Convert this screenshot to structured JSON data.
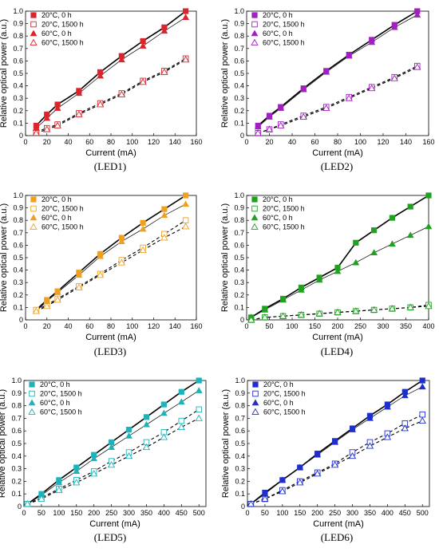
{
  "chart_data": [
    {
      "type": "scatter",
      "caption": "(LED1)",
      "color": "#d9262c",
      "xlabel": "Current (mA)",
      "ylabel": "Relative optical power (a.u.)",
      "xlim": [
        0,
        160
      ],
      "ylim": [
        0,
        1.0
      ],
      "xticks": [
        0,
        20,
        40,
        60,
        80,
        100,
        120,
        140,
        160
      ],
      "yticks": [
        0,
        0.1,
        0.2,
        0.3,
        0.4,
        0.5,
        0.6,
        0.7,
        0.8,
        0.9,
        1.0
      ],
      "grid": false,
      "legend": "top-left",
      "x": [
        10,
        20,
        30,
        50,
        70,
        90,
        110,
        130,
        150
      ],
      "series": [
        {
          "name": "20°C, 0 h",
          "marker": "square-filled",
          "line": "solid-thick",
          "values": [
            0.08,
            0.17,
            0.25,
            0.36,
            0.51,
            0.64,
            0.76,
            0.87,
            1.0
          ]
        },
        {
          "name": "20°C, 1500 h",
          "marker": "square-open",
          "line": "dashed",
          "values": [
            0.03,
            0.06,
            0.09,
            0.18,
            0.26,
            0.34,
            0.44,
            0.52,
            0.62
          ]
        },
        {
          "name": "60°C, 0 h",
          "marker": "triangle-filled",
          "line": "solid-thin",
          "values": [
            0.06,
            0.14,
            0.22,
            0.34,
            0.48,
            0.61,
            0.72,
            0.84,
            0.95
          ]
        },
        {
          "name": "60°C, 1500 h",
          "marker": "triangle-open",
          "line": "dashed",
          "values": [
            0.02,
            0.05,
            0.08,
            0.17,
            0.25,
            0.33,
            0.43,
            0.51,
            0.61
          ]
        }
      ]
    },
    {
      "type": "scatter",
      "caption": "(LED2)",
      "color": "#a020c0",
      "xlabel": "Current (mA)",
      "ylabel": "Relative optical power (a.u.)",
      "xlim": [
        0,
        160
      ],
      "ylim": [
        0,
        1.0
      ],
      "xticks": [
        0,
        20,
        40,
        60,
        80,
        100,
        120,
        140,
        160
      ],
      "yticks": [
        0,
        0.1,
        0.2,
        0.3,
        0.4,
        0.5,
        0.6,
        0.7,
        0.8,
        0.9,
        1.0
      ],
      "grid": false,
      "legend": "top-left",
      "x": [
        10,
        20,
        30,
        50,
        70,
        90,
        110,
        130,
        150
      ],
      "series": [
        {
          "name": "20°C, 0 h",
          "marker": "square-filled",
          "line": "solid-thick",
          "values": [
            0.08,
            0.16,
            0.23,
            0.38,
            0.52,
            0.65,
            0.77,
            0.89,
            1.0
          ]
        },
        {
          "name": "20°C, 1500 h",
          "marker": "square-open",
          "line": "dashed",
          "values": [
            0.02,
            0.05,
            0.09,
            0.16,
            0.23,
            0.31,
            0.39,
            0.47,
            0.56
          ]
        },
        {
          "name": "60°C, 0 h",
          "marker": "triangle-filled",
          "line": "solid-thin",
          "values": [
            0.07,
            0.15,
            0.22,
            0.37,
            0.51,
            0.64,
            0.75,
            0.87,
            0.97
          ]
        },
        {
          "name": "60°C, 1500 h",
          "marker": "triangle-open",
          "line": "dashed",
          "values": [
            0.02,
            0.05,
            0.08,
            0.15,
            0.22,
            0.3,
            0.38,
            0.46,
            0.55
          ]
        }
      ]
    },
    {
      "type": "scatter",
      "caption": "(LED3)",
      "color": "#f0a020",
      "xlabel": "Current (mA)",
      "ylabel": "Relative optical power (a.u.)",
      "xlim": [
        0,
        160
      ],
      "ylim": [
        0,
        1.0
      ],
      "xticks": [
        0,
        20,
        40,
        60,
        80,
        100,
        120,
        140,
        160
      ],
      "yticks": [
        0,
        0.1,
        0.2,
        0.3,
        0.4,
        0.5,
        0.6,
        0.7,
        0.8,
        0.9,
        1.0
      ],
      "grid": false,
      "legend": "top-left",
      "x": [
        10,
        20,
        30,
        50,
        70,
        90,
        110,
        130,
        150
      ],
      "series": [
        {
          "name": "20°C, 0 h",
          "marker": "square-filled",
          "line": "solid-thick",
          "values": [
            0.08,
            0.16,
            0.23,
            0.38,
            0.53,
            0.66,
            0.78,
            0.89,
            1.0
          ]
        },
        {
          "name": "20°C, 1500 h",
          "marker": "square-open",
          "line": "dashed",
          "values": [
            0.08,
            0.12,
            0.17,
            0.27,
            0.37,
            0.48,
            0.58,
            0.69,
            0.8
          ]
        },
        {
          "name": "60°C, 0 h",
          "marker": "triangle-filled",
          "line": "solid-thin",
          "values": [
            0.07,
            0.15,
            0.22,
            0.36,
            0.51,
            0.63,
            0.73,
            0.84,
            0.93
          ]
        },
        {
          "name": "60°C, 1500 h",
          "marker": "triangle-open",
          "line": "dashed",
          "values": [
            0.07,
            0.11,
            0.16,
            0.26,
            0.36,
            0.46,
            0.56,
            0.66,
            0.75
          ]
        }
      ]
    },
    {
      "type": "scatter",
      "caption": "(LED4)",
      "color": "#21a121",
      "xlabel": "Current (mA)",
      "ylabel": "Relative optical power (a.u.)",
      "xlim": [
        0,
        400
      ],
      "ylim": [
        0,
        1.0
      ],
      "xticks": [
        0,
        50,
        100,
        150,
        200,
        250,
        300,
        350,
        400
      ],
      "yticks": [
        0,
        0.1,
        0.2,
        0.3,
        0.4,
        0.5,
        0.6,
        0.7,
        0.8,
        0.9,
        1.0
      ],
      "grid": false,
      "legend": "top-left",
      "x": [
        10,
        40,
        80,
        120,
        160,
        200,
        240,
        280,
        320,
        360,
        400
      ],
      "series": [
        {
          "name": "20°C, 0 h",
          "marker": "square-filled",
          "line": "solid-thick",
          "values": [
            0.02,
            0.09,
            0.17,
            0.26,
            0.34,
            0.42,
            0.62,
            0.72,
            0.82,
            0.91,
            1.0
          ]
        },
        {
          "name": "20°C, 1500 h",
          "marker": "square-open",
          "line": "dashed",
          "values": [
            0.0,
            0.02,
            0.03,
            0.04,
            0.05,
            0.06,
            0.07,
            0.08,
            0.09,
            0.1,
            0.12
          ]
        },
        {
          "name": "60°C, 0 h",
          "marker": "triangle-filled",
          "line": "solid-thin",
          "values": [
            0.02,
            0.08,
            0.16,
            0.24,
            0.32,
            0.39,
            0.46,
            0.54,
            0.61,
            0.68,
            0.75
          ]
        },
        {
          "name": "60°C, 1500 h",
          "marker": "triangle-open",
          "line": "dashed",
          "values": [
            0.0,
            0.02,
            0.03,
            0.04,
            0.05,
            0.06,
            0.07,
            0.08,
            0.09,
            0.1,
            0.11
          ]
        }
      ]
    },
    {
      "type": "scatter",
      "caption": "(LED5)",
      "color": "#20b2b8",
      "xlabel": "Current (mA)",
      "ylabel": "Relative optical power (a.u.)",
      "xlim": [
        0,
        520
      ],
      "ylim": [
        0,
        1.0
      ],
      "xticks": [
        0,
        50,
        100,
        150,
        200,
        250,
        300,
        350,
        400,
        450,
        500
      ],
      "yticks": [
        0,
        0.1,
        0.2,
        0.3,
        0.4,
        0.5,
        0.6,
        0.7,
        0.8,
        0.9,
        1.0
      ],
      "grid": false,
      "legend": "top-left",
      "x": [
        10,
        50,
        100,
        150,
        200,
        250,
        300,
        350,
        400,
        450,
        500
      ],
      "series": [
        {
          "name": "20°C, 0 h",
          "marker": "square-filled",
          "line": "solid-thick",
          "values": [
            0.02,
            0.1,
            0.21,
            0.31,
            0.41,
            0.51,
            0.61,
            0.71,
            0.81,
            0.91,
            1.0
          ]
        },
        {
          "name": "20°C, 1500 h",
          "marker": "square-open",
          "line": "dashed",
          "values": [
            0.02,
            0.07,
            0.14,
            0.21,
            0.28,
            0.36,
            0.43,
            0.51,
            0.59,
            0.68,
            0.77
          ]
        },
        {
          "name": "60°C, 0 h",
          "marker": "triangle-filled",
          "line": "solid-thin",
          "values": [
            0.02,
            0.09,
            0.19,
            0.28,
            0.38,
            0.47,
            0.56,
            0.65,
            0.74,
            0.83,
            0.92
          ]
        },
        {
          "name": "60°C, 1500 h",
          "marker": "triangle-open",
          "line": "dashed",
          "values": [
            0.02,
            0.06,
            0.13,
            0.19,
            0.26,
            0.33,
            0.4,
            0.47,
            0.55,
            0.63,
            0.7
          ]
        }
      ]
    },
    {
      "type": "scatter",
      "caption": "(LED6)",
      "color": "#1f2fc8",
      "xlabel": "Current (mA)",
      "ylabel": "Relative optical power (a.u.)",
      "xlim": [
        0,
        520
      ],
      "ylim": [
        0,
        1.0
      ],
      "xticks": [
        0,
        50,
        100,
        150,
        200,
        250,
        300,
        350,
        400,
        450,
        500
      ],
      "yticks": [
        0,
        0.1,
        0.2,
        0.3,
        0.4,
        0.5,
        0.6,
        0.7,
        0.8,
        0.9,
        1.0
      ],
      "grid": false,
      "legend": "top-left",
      "x": [
        10,
        50,
        100,
        150,
        200,
        250,
        300,
        350,
        400,
        450,
        500
      ],
      "series": [
        {
          "name": "20°C, 0 h",
          "marker": "square-filled",
          "line": "solid-thick",
          "values": [
            0.02,
            0.11,
            0.21,
            0.31,
            0.42,
            0.52,
            0.62,
            0.72,
            0.81,
            0.91,
            1.0
          ]
        },
        {
          "name": "20°C, 1500 h",
          "marker": "square-open",
          "line": "dashed",
          "values": [
            0.02,
            0.06,
            0.13,
            0.2,
            0.27,
            0.34,
            0.43,
            0.51,
            0.58,
            0.66,
            0.73
          ]
        },
        {
          "name": "60°C, 0 h",
          "marker": "triangle-filled",
          "line": "solid-thin",
          "values": [
            0.02,
            0.1,
            0.21,
            0.31,
            0.41,
            0.51,
            0.61,
            0.7,
            0.79,
            0.88,
            0.95
          ]
        },
        {
          "name": "60°C, 1500 h",
          "marker": "triangle-open",
          "line": "dashed",
          "values": [
            0.02,
            0.06,
            0.12,
            0.19,
            0.26,
            0.33,
            0.4,
            0.48,
            0.55,
            0.62,
            0.68
          ]
        }
      ]
    }
  ]
}
